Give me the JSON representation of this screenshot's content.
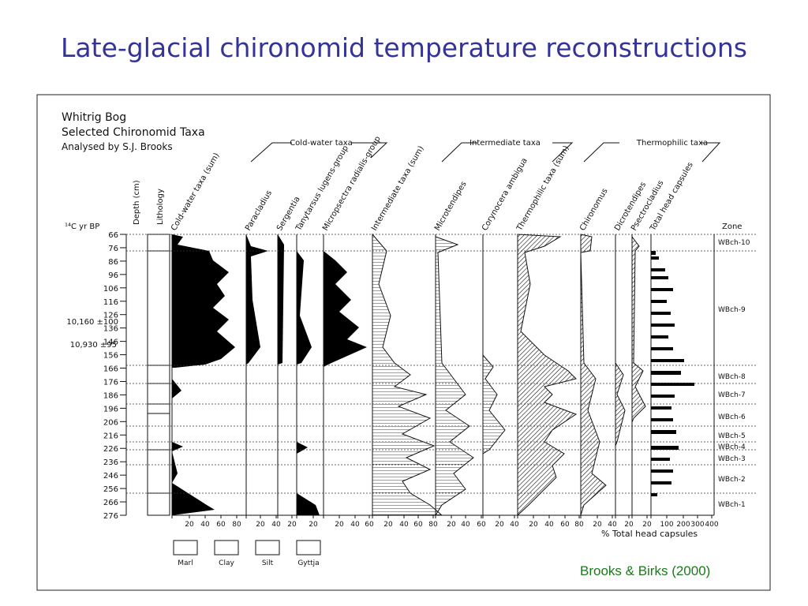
{
  "title": "Late-glacial chironomid temperature reconstructions",
  "citation": "Brooks & Birks (2000)",
  "diagram": {
    "site": "Whitrig Bog",
    "subtitle": "Selected Chironomid Taxa",
    "author": "Analysed by S.J. Brooks",
    "depth_label": "Depth (cm)",
    "lithology_label": "Lithology",
    "age_label": "¹⁴C yr BP",
    "dates": [
      "10,160 ±100",
      "10,930 ±95"
    ],
    "depths": [
      66,
      76,
      86,
      96,
      106,
      116,
      126,
      136,
      146,
      156,
      166,
      176,
      186,
      196,
      206,
      216,
      226,
      236,
      246,
      256,
      266,
      276
    ],
    "groups": [
      "Cold-water taxa",
      "Intermediate taxa",
      "Thermophilic taxa"
    ],
    "taxa": [
      {
        "name": "Cold-water taxa (sum)",
        "ticks": [
          20,
          40,
          60,
          80
        ]
      },
      {
        "name": "Paracladius",
        "ticks": [
          20,
          40
        ]
      },
      {
        "name": "Sergentia",
        "ticks": [
          20
        ]
      },
      {
        "name": "Tanytarsus lugens-group",
        "ticks": [
          20
        ]
      },
      {
        "name": "Micropsectra radialis-group",
        "ticks": [
          20,
          40,
          60
        ]
      },
      {
        "name": "Intermediate taxa (sum)",
        "ticks": [
          20,
          40,
          60,
          80
        ]
      },
      {
        "name": "Microtendipes",
        "ticks": [
          20,
          40,
          60
        ]
      },
      {
        "name": "Corynocera ambigua",
        "ticks": [
          20,
          40
        ]
      },
      {
        "name": "Thermophilic taxa (sum)",
        "ticks": [
          20,
          40,
          60,
          80
        ]
      },
      {
        "name": "Chironomus",
        "ticks": [
          20,
          40
        ]
      },
      {
        "name": "Dicrotendipes",
        "ticks": [
          20
        ]
      },
      {
        "name": "Psectrocladius",
        "ticks": [
          20
        ]
      },
      {
        "name": "Total head capsules",
        "ticks": [
          100,
          200,
          300,
          400
        ]
      }
    ],
    "x_axis_label": "% Total head capsules",
    "zone_label": "Zone",
    "zones": [
      "WBch-10",
      "WBch-9",
      "WBch-8",
      "WBch-7",
      "WBch-6",
      "WBch-5",
      "WBch-4",
      "WBch-3",
      "WBch-2",
      "WBch-1"
    ],
    "legend": [
      "Marl",
      "Clay",
      "Silt",
      "Gyttja"
    ]
  }
}
